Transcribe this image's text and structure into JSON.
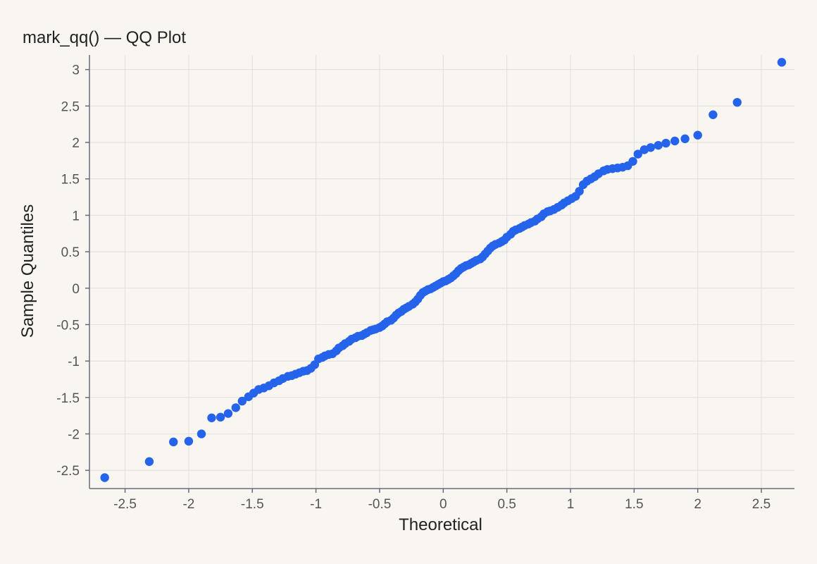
{
  "chart_data": {
    "type": "scatter",
    "title": "mark_qq() — QQ Plot",
    "xlabel": "Theoretical",
    "ylabel": "Sample Quantiles",
    "xlim": [
      -2.78,
      2.76
    ],
    "ylim": [
      -2.75,
      3.2
    ],
    "xticks": [
      -2.5,
      -2,
      -1.5,
      -1,
      -0.5,
      0,
      0.5,
      1,
      1.5,
      2,
      2.5
    ],
    "yticks": [
      -2.5,
      -2,
      -1.5,
      -1,
      -0.5,
      0,
      0.5,
      1,
      1.5,
      2,
      2.5,
      3
    ],
    "grid": true,
    "marker_color": "#2563eb",
    "points": [
      [
        -2.66,
        -2.6
      ],
      [
        -2.31,
        -2.38
      ],
      [
        -2.12,
        -2.11
      ],
      [
        -2.0,
        -2.1
      ],
      [
        -1.9,
        -2.0
      ],
      [
        -1.82,
        -1.78
      ],
      [
        -1.75,
        -1.77
      ],
      [
        -1.69,
        -1.72
      ],
      [
        -1.63,
        -1.64
      ],
      [
        -1.58,
        -1.55
      ],
      [
        -1.53,
        -1.49
      ],
      [
        -1.49,
        -1.44
      ],
      [
        -1.45,
        -1.39
      ],
      [
        -1.41,
        -1.37
      ],
      [
        -1.37,
        -1.34
      ],
      [
        -1.33,
        -1.3
      ],
      [
        -1.29,
        -1.27
      ],
      [
        -1.26,
        -1.24
      ],
      [
        -1.22,
        -1.21
      ],
      [
        -1.19,
        -1.2
      ],
      [
        -1.16,
        -1.18
      ],
      [
        -1.13,
        -1.16
      ],
      [
        -1.1,
        -1.14
      ],
      [
        -1.07,
        -1.13
      ],
      [
        -1.04,
        -1.1
      ],
      [
        -1.01,
        -1.05
      ],
      [
        -0.98,
        -0.97
      ],
      [
        -0.95,
        -0.95
      ],
      [
        -0.93,
        -0.93
      ],
      [
        -0.9,
        -0.91
      ],
      [
        -0.87,
        -0.9
      ],
      [
        -0.84,
        -0.86
      ],
      [
        -0.82,
        -0.82
      ],
      [
        -0.79,
        -0.79
      ],
      [
        -0.77,
        -0.76
      ],
      [
        -0.74,
        -0.73
      ],
      [
        -0.72,
        -0.7
      ],
      [
        -0.69,
        -0.68
      ],
      [
        -0.67,
        -0.66
      ],
      [
        -0.64,
        -0.65
      ],
      [
        -0.62,
        -0.63
      ],
      [
        -0.6,
        -0.61
      ],
      [
        -0.57,
        -0.58
      ],
      [
        -0.55,
        -0.57
      ],
      [
        -0.53,
        -0.56
      ],
      [
        -0.5,
        -0.54
      ],
      [
        -0.48,
        -0.52
      ],
      [
        -0.46,
        -0.49
      ],
      [
        -0.44,
        -0.46
      ],
      [
        -0.41,
        -0.44
      ],
      [
        -0.39,
        -0.41
      ],
      [
        -0.37,
        -0.37
      ],
      [
        -0.35,
        -0.34
      ],
      [
        -0.33,
        -0.32
      ],
      [
        -0.31,
        -0.29
      ],
      [
        -0.29,
        -0.27
      ],
      [
        -0.27,
        -0.25
      ],
      [
        -0.24,
        -0.22
      ],
      [
        -0.22,
        -0.19
      ],
      [
        -0.2,
        -0.15
      ],
      [
        -0.18,
        -0.1
      ],
      [
        -0.16,
        -0.06
      ],
      [
        -0.14,
        -0.04
      ],
      [
        -0.12,
        -0.02
      ],
      [
        -0.1,
        -0.01
      ],
      [
        -0.08,
        0.01
      ],
      [
        -0.06,
        0.03
      ],
      [
        -0.04,
        0.05
      ],
      [
        -0.02,
        0.07
      ],
      [
        0.0,
        0.09
      ],
      [
        0.02,
        0.1
      ],
      [
        0.04,
        0.12
      ],
      [
        0.06,
        0.14
      ],
      [
        0.08,
        0.17
      ],
      [
        0.1,
        0.2
      ],
      [
        0.12,
        0.24
      ],
      [
        0.14,
        0.27
      ],
      [
        0.16,
        0.29
      ],
      [
        0.18,
        0.31
      ],
      [
        0.2,
        0.32
      ],
      [
        0.22,
        0.34
      ],
      [
        0.24,
        0.36
      ],
      [
        0.26,
        0.38
      ],
      [
        0.29,
        0.4
      ],
      [
        0.31,
        0.43
      ],
      [
        0.33,
        0.47
      ],
      [
        0.35,
        0.51
      ],
      [
        0.37,
        0.55
      ],
      [
        0.39,
        0.58
      ],
      [
        0.41,
        0.6
      ],
      [
        0.44,
        0.62
      ],
      [
        0.46,
        0.64
      ],
      [
        0.48,
        0.66
      ],
      [
        0.5,
        0.7
      ],
      [
        0.53,
        0.74
      ],
      [
        0.55,
        0.78
      ],
      [
        0.57,
        0.8
      ],
      [
        0.6,
        0.82
      ],
      [
        0.62,
        0.84
      ],
      [
        0.64,
        0.86
      ],
      [
        0.67,
        0.88
      ],
      [
        0.69,
        0.9
      ],
      [
        0.72,
        0.92
      ],
      [
        0.74,
        0.95
      ],
      [
        0.77,
        0.98
      ],
      [
        0.79,
        1.02
      ],
      [
        0.82,
        1.05
      ],
      [
        0.84,
        1.06
      ],
      [
        0.87,
        1.08
      ],
      [
        0.9,
        1.11
      ],
      [
        0.93,
        1.14
      ],
      [
        0.95,
        1.17
      ],
      [
        0.98,
        1.2
      ],
      [
        1.01,
        1.23
      ],
      [
        1.04,
        1.26
      ],
      [
        1.07,
        1.33
      ],
      [
        1.1,
        1.42
      ],
      [
        1.13,
        1.47
      ],
      [
        1.16,
        1.5
      ],
      [
        1.19,
        1.53
      ],
      [
        1.22,
        1.57
      ],
      [
        1.26,
        1.61
      ],
      [
        1.29,
        1.63
      ],
      [
        1.33,
        1.64
      ],
      [
        1.37,
        1.65
      ],
      [
        1.41,
        1.66
      ],
      [
        1.45,
        1.68
      ],
      [
        1.49,
        1.74
      ],
      [
        1.53,
        1.84
      ],
      [
        1.58,
        1.9
      ],
      [
        1.63,
        1.93
      ],
      [
        1.69,
        1.96
      ],
      [
        1.75,
        1.99
      ],
      [
        1.82,
        2.02
      ],
      [
        1.9,
        2.05
      ],
      [
        2.0,
        2.1
      ],
      [
        2.12,
        2.38
      ],
      [
        2.31,
        2.55
      ],
      [
        2.66,
        3.1
      ]
    ]
  }
}
